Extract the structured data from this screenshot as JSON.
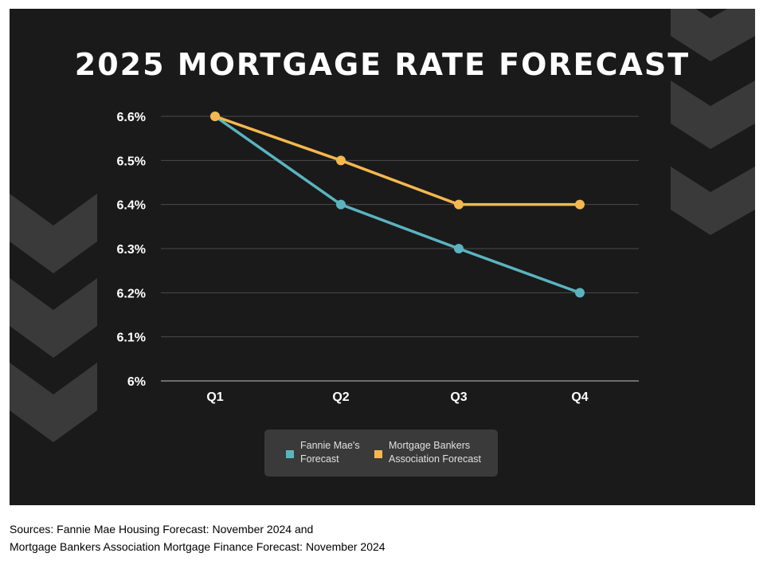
{
  "colors": {
    "background": "#1a1a1a",
    "chevron": "#3a3a3a",
    "legend_box": "#3a3a3a",
    "grid": "#4a4a4a",
    "axis": "#8a8a8a",
    "tick_text": "#ffffff"
  },
  "chart_data": {
    "type": "line",
    "title": "2025 MORTGAGE RATE FORECAST",
    "categories": [
      "Q1",
      "Q2",
      "Q3",
      "Q4"
    ],
    "y_ticks": [
      "6%",
      "6.1%",
      "6.2%",
      "6.3%",
      "6.4%",
      "6.5%",
      "6.6%"
    ],
    "ylim": [
      6.0,
      6.6
    ],
    "grid": true,
    "legend_position": "bottom",
    "series": [
      {
        "name": "Fannie Mae's Forecast",
        "legend_label": "Fannie Mae's\nForecast",
        "color": "#5ab4c0",
        "values": [
          6.6,
          6.4,
          6.3,
          6.2
        ]
      },
      {
        "name": "Mortgage Bankers Association Forecast",
        "legend_label": "Mortgage Bankers\nAssociation Forecast",
        "color": "#f5b74e",
        "values": [
          6.6,
          6.5,
          6.4,
          6.4
        ]
      }
    ]
  },
  "sources": {
    "line1": "Sources: Fannie Mae Housing Forecast: November 2024 and",
    "line2": "Mortgage Bankers Association Mortgage Finance Forecast: November 2024"
  }
}
